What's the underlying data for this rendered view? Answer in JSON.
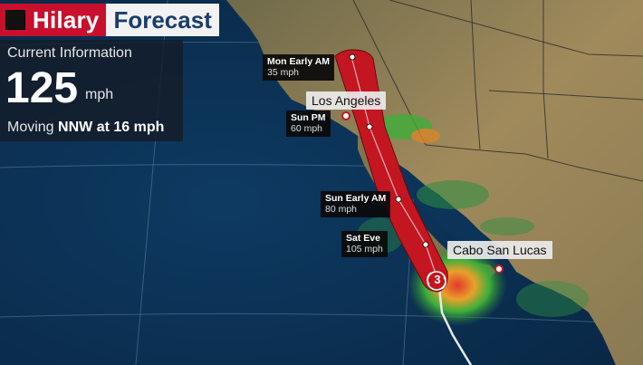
{
  "header": {
    "storm_name": "Hilary",
    "product": "Forecast",
    "brand_color": "#c8102e"
  },
  "info_panel": {
    "title": "Current Information",
    "wind_speed": "125",
    "wind_unit": "mph",
    "moving_prefix": "Moving ",
    "moving_direction_speed": "NNW at 16 mph"
  },
  "track_points": [
    {
      "time": "Mon Early AM",
      "wind": "35 mph"
    },
    {
      "time": "Sun PM",
      "wind": "60 mph"
    },
    {
      "time": "Sun Early AM",
      "wind": "80 mph"
    },
    {
      "time": "Sat Eve",
      "wind": "105 mph"
    }
  ],
  "cities": [
    {
      "name": "Los Angeles"
    },
    {
      "name": "Cabo San Lucas"
    }
  ],
  "storm_icon": {
    "category": "3",
    "icon": "hurricane-symbol-icon"
  },
  "colors": {
    "cone": "#c41620",
    "ocean": "#0b3256",
    "land": "#9a8458"
  }
}
